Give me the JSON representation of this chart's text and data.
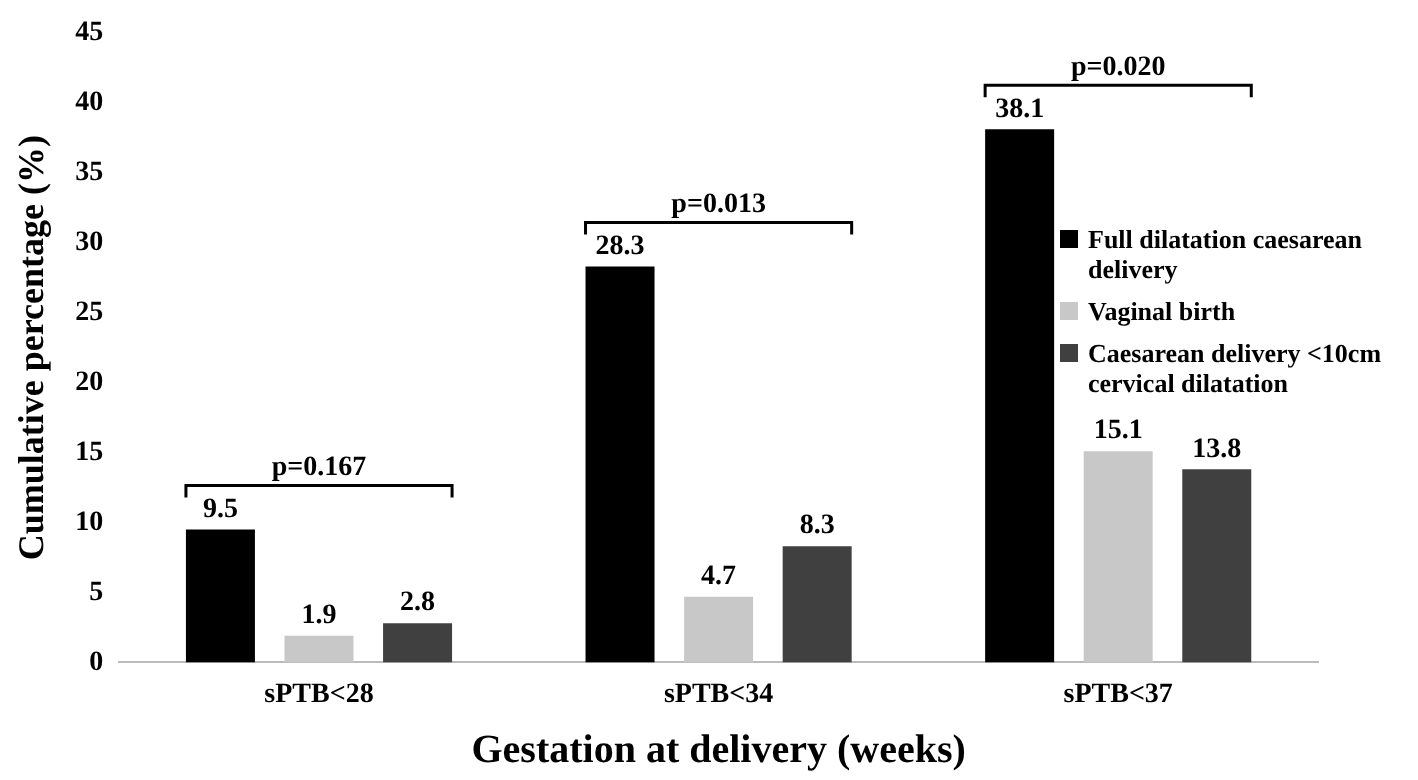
{
  "chart_data": {
    "type": "bar",
    "xlabel": "Gestation at delivery (weeks)",
    "ylabel": "Cumulative percentage (%)",
    "categories": [
      "sPTB<28",
      "sPTB<34",
      "sPTB<37"
    ],
    "series": [
      {
        "name": "Full dilatation caesarean delivery",
        "color": "#000000",
        "values": [
          9.5,
          28.3,
          38.1
        ]
      },
      {
        "name": "Vaginal birth",
        "color": "#c8c8c8",
        "values": [
          1.9,
          4.7,
          15.1
        ]
      },
      {
        "name": "Caesarean delivery <10cm cervical dilatation",
        "color": "#404040",
        "values": [
          2.8,
          8.3,
          13.8
        ]
      }
    ],
    "ylim": [
      0,
      45
    ],
    "yticks": [
      0,
      5,
      10,
      15,
      20,
      25,
      30,
      35,
      40,
      45
    ],
    "grid": false,
    "legend": "right",
    "data_labels": true,
    "annotations": [
      "p=0.167",
      "p=0.013",
      "p=0.020"
    ]
  }
}
